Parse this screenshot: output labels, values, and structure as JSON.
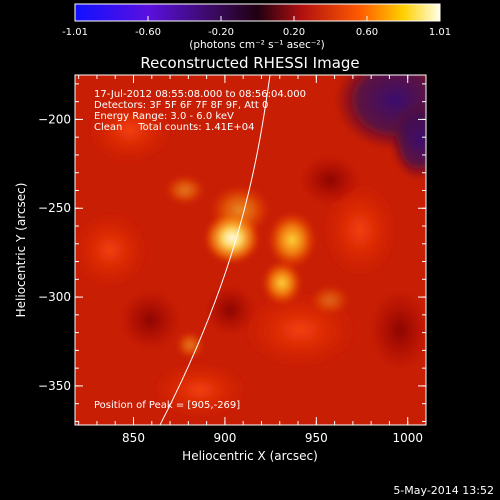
{
  "colorbar": {
    "ticks": [
      "-1.01",
      "-0.60",
      "-0.20",
      "0.20",
      "0.60",
      "1.01"
    ],
    "units_label": "(photons cm⁻² s⁻¹ asec⁻²)"
  },
  "plot": {
    "title": "Reconstructed RHESSI Image",
    "info_lines": [
      "17-Jul-2012 08:55:08.000 to 08:56:04.000",
      "Detectors: 3F 5F 6F 7F 8F 9F, Att 0",
      "Energy Range: 3.0 - 6.0 keV",
      "Clean     Total counts: 1.41E+04"
    ],
    "peak_label": "Position of Peak = [905,-269]"
  },
  "axes": {
    "xlabel": "Heliocentric X (arcsec)",
    "ylabel": "Heliocentric Y (arcsec)",
    "xticks": [
      850,
      900,
      950,
      1000
    ],
    "yticks": [
      -200,
      -250,
      -300,
      -350
    ],
    "xlim": [
      818,
      1010
    ],
    "ylim": [
      -372,
      -175
    ]
  },
  "footer": {
    "date": "5-May-2014 13:52"
  },
  "colors": {
    "background": "#000000",
    "text": "#ffffff"
  }
}
